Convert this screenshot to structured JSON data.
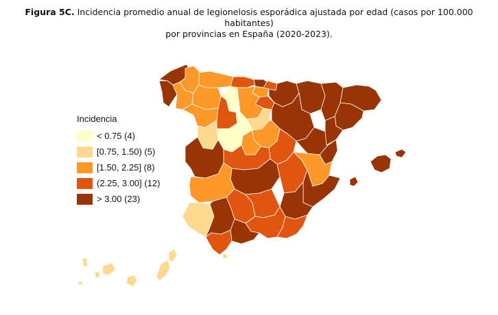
{
  "caption": {
    "figure": "Figura 5C.",
    "line1": "Incidencia promedio anual de legionelosis esporádica ajustada por edad (casos por 100.000 habitantes)",
    "line2": "por provincias en España (2020-2023)."
  },
  "legend": {
    "title": "Incidencia",
    "items": [
      {
        "label": "< 0.75 (4)",
        "color": "#ffffc8"
      },
      {
        "label": "[0.75, 1.50) (5)",
        "color": "#fed98e"
      },
      {
        "label": "[1.50, 2.25] (8)",
        "color": "#fe9929"
      },
      {
        "label": "(2.25, 3.00] (12)",
        "color": "#e0560e"
      },
      {
        "label": "> 3.00 (23)",
        "color": "#993404"
      }
    ]
  }
}
